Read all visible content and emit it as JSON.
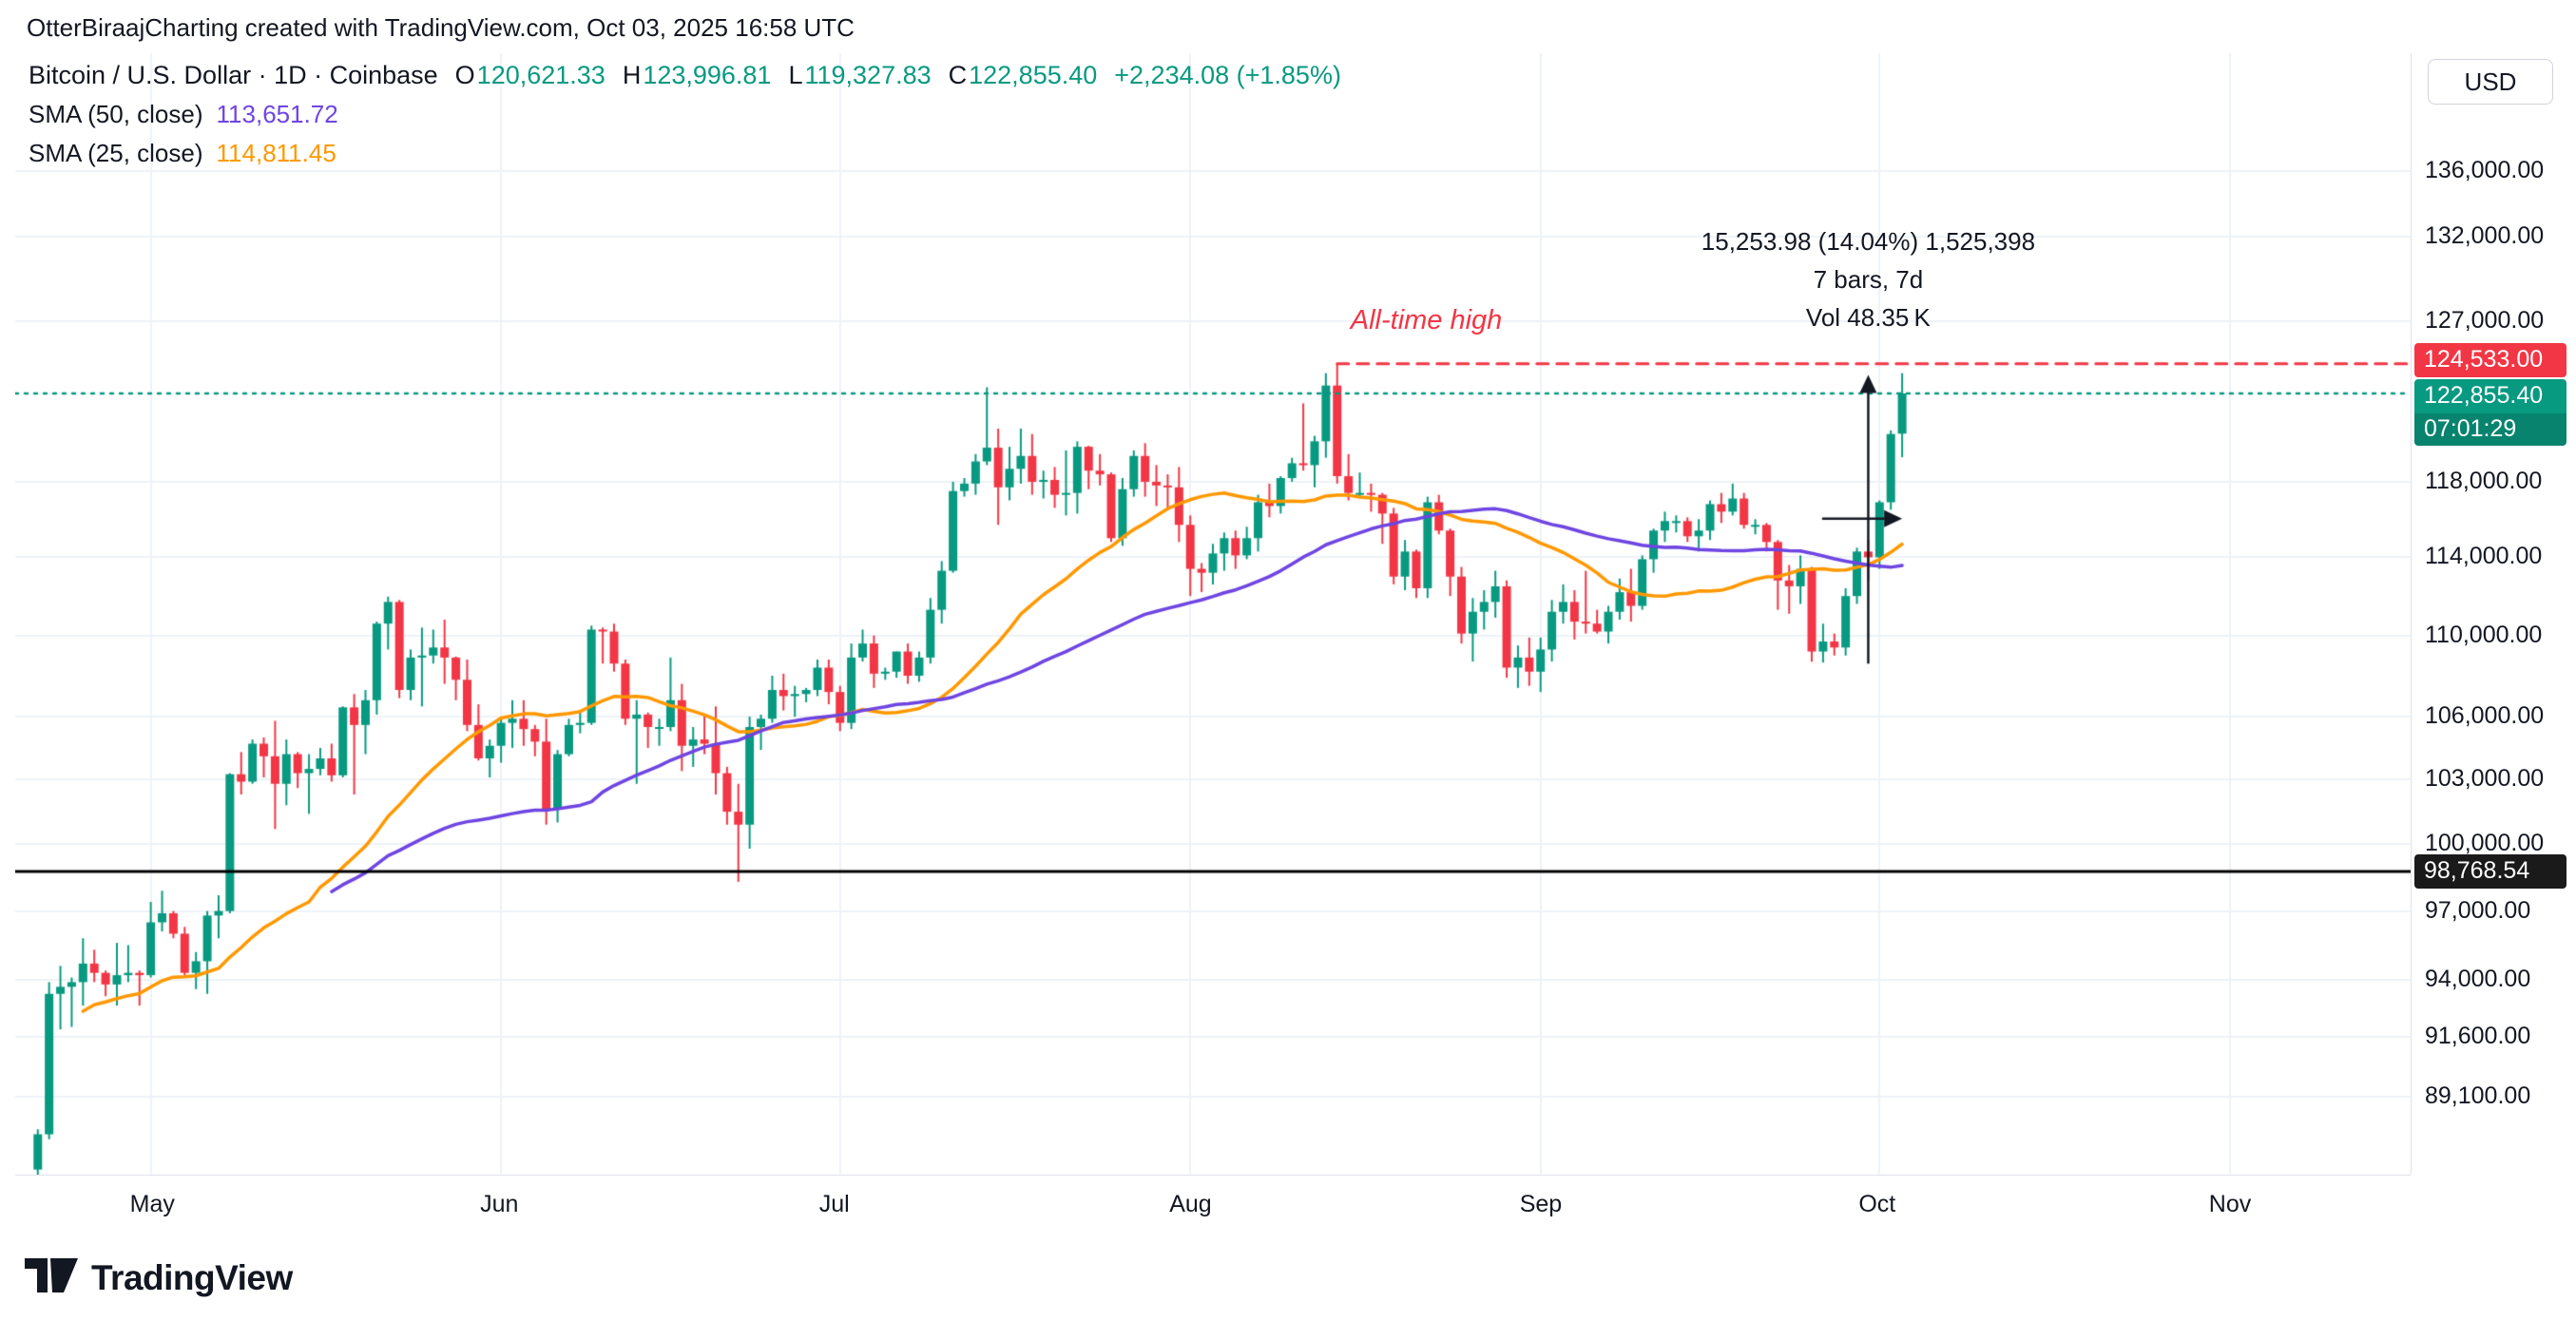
{
  "attribution": "OtterBiraajCharting created with TradingView.com, Oct 03, 2025 16:58 UTC",
  "header": {
    "title": "Bitcoin / U.S. Dollar · 1D · Coinbase",
    "o_label": "O",
    "o": "120,621.33",
    "h_label": "H",
    "h": "123,996.81",
    "l_label": "L",
    "l": "119,327.83",
    "c_label": "C",
    "c": "122,855.40",
    "change": "+2,234.08 (+1.85%)"
  },
  "indicators": [
    {
      "label": "SMA (50, close)",
      "period": 50,
      "value": "113,651.72",
      "color": "#6e45e2"
    },
    {
      "label": "SMA (25, close)",
      "period": 25,
      "value": "114,811.45",
      "color": "#ff9800"
    }
  ],
  "currency_button": "USD",
  "price_axis": {
    "labels": [
      {
        "text": "136,000.00",
        "price": 136000
      },
      {
        "text": "132,000.00",
        "price": 132000
      },
      {
        "text": "127,000.00",
        "price": 127000
      },
      {
        "text": "118,000.00",
        "price": 118000
      },
      {
        "text": "114,000.00",
        "price": 114000
      },
      {
        "text": "110,000.00",
        "price": 110000
      },
      {
        "text": "106,000.00",
        "price": 106000
      },
      {
        "text": "103,000.00",
        "price": 103000
      },
      {
        "text": "100,000.00",
        "price": 100000
      },
      {
        "text": "97,000.00",
        "price": 97000
      },
      {
        "text": "94,000.00",
        "price": 94000
      },
      {
        "text": "91,600.00",
        "price": 91600
      },
      {
        "text": "89,100.00",
        "price": 89100
      }
    ],
    "badges": {
      "ath": {
        "text": "124,533.00",
        "price": 124533,
        "color": "#f23645"
      },
      "last": {
        "text": "122,855.40",
        "price": 122855.4,
        "color": "#089981"
      },
      "countdown": {
        "text": "07:01:29",
        "color": "#07836e"
      },
      "level": {
        "text": "98,768.54",
        "price": 98768.54,
        "color": "#1a1a1a"
      }
    }
  },
  "time_axis": {
    "labels": [
      {
        "label": "May",
        "t": "05-01"
      },
      {
        "label": "Jun",
        "t": "06-01"
      },
      {
        "label": "Jul",
        "t": "07-01"
      },
      {
        "label": "Aug",
        "t": "08-01"
      },
      {
        "label": "Sep",
        "t": "09-01"
      },
      {
        "label": "Oct",
        "t": "10-01"
      },
      {
        "label": "Nov",
        "t": "11-01"
      }
    ]
  },
  "annotations": {
    "ath_label": "All-time high",
    "measure": {
      "line1": "15,253.98 (14.04%) 1,525,398",
      "line2": "7 bars, 7d",
      "line3": "Vol 48.35 K"
    }
  },
  "footer": {
    "brand": "TradingView"
  },
  "theme": {
    "background": "#ffffff",
    "grid": "#eef2f7",
    "up": "#089981",
    "down": "#f23645",
    "text": "#131722",
    "ath_line": "#f23645",
    "last_line": "#089981",
    "black_line": "#000000",
    "measure": "#131722"
  },
  "chart_data": {
    "type": "candlestick",
    "symbol": "Bitcoin / U.S. Dollar",
    "ticker": "BTCUSD",
    "exchange": "Coinbase",
    "interval": "1D",
    "title": "Bitcoin / U.S. Dollar · 1D · Coinbase",
    "scale": {
      "type": "log",
      "price_min": 86000,
      "price_max": 143500,
      "time_start": "04-19",
      "span_days": 212
    },
    "levels": {
      "ath": 124533.0,
      "ath_anchor": "08-14",
      "last": 122855.4,
      "black_level": 98768.54
    },
    "measure": {
      "start": "09-26",
      "end": "10-03",
      "mid": "09-30",
      "from_price": 108650,
      "to_price": 123900,
      "bars": 7,
      "days": 7,
      "volume": "48.35K"
    },
    "candles": [
      [
        "04-21",
        86200,
        87800,
        85800,
        87600
      ],
      [
        "04-22",
        87600,
        93900,
        87400,
        93400
      ],
      [
        "04-23",
        93400,
        94600,
        91900,
        93700
      ],
      [
        "04-24",
        93700,
        94100,
        92000,
        93900
      ],
      [
        "04-25",
        93900,
        95800,
        92900,
        94700
      ],
      [
        "04-26",
        94700,
        95300,
        93900,
        94300
      ],
      [
        "04-27",
        94300,
        94400,
        93300,
        93800
      ],
      [
        "04-28",
        93800,
        95600,
        92900,
        94200
      ],
      [
        "04-29",
        94200,
        95500,
        93900,
        94300
      ],
      [
        "04-30",
        94300,
        94400,
        92900,
        94200
      ],
      [
        "05-01",
        94200,
        97400,
        94100,
        96500
      ],
      [
        "05-02",
        96500,
        97900,
        96100,
        96900
      ],
      [
        "05-03",
        96900,
        97000,
        95800,
        96000
      ],
      [
        "05-04",
        96000,
        96300,
        94200,
        94300
      ],
      [
        "05-05",
        94300,
        95200,
        93600,
        94800
      ],
      [
        "05-06",
        94800,
        97000,
        93400,
        96800
      ],
      [
        "05-07",
        96800,
        97700,
        95800,
        97000
      ],
      [
        "05-08",
        97000,
        103300,
        96900,
        103250
      ],
      [
        "05-09",
        103250,
        104300,
        102300,
        102900
      ],
      [
        "05-10",
        102900,
        104900,
        102800,
        104700
      ],
      [
        "05-11",
        104700,
        105000,
        103100,
        104100
      ],
      [
        "05-12",
        104100,
        105800,
        100700,
        102800
      ],
      [
        "05-13",
        102800,
        104900,
        101800,
        104200
      ],
      [
        "05-14",
        104200,
        104300,
        102600,
        103300
      ],
      [
        "05-15",
        103300,
        104200,
        101400,
        103500
      ],
      [
        "05-16",
        103500,
        104500,
        103200,
        104000
      ],
      [
        "05-17",
        104000,
        104700,
        102900,
        103200
      ],
      [
        "05-18",
        103200,
        106500,
        103100,
        106450
      ],
      [
        "05-19",
        106450,
        107100,
        102300,
        105600
      ],
      [
        "05-20",
        105600,
        107300,
        104200,
        106800
      ],
      [
        "05-21",
        106800,
        110700,
        106100,
        110600
      ],
      [
        "05-22",
        110600,
        111970,
        109300,
        111700
      ],
      [
        "05-23",
        111700,
        111800,
        106900,
        107300
      ],
      [
        "05-24",
        107300,
        109300,
        106800,
        108900
      ],
      [
        "05-25",
        108900,
        110400,
        106500,
        109000
      ],
      [
        "05-26",
        109000,
        110300,
        108600,
        109400
      ],
      [
        "05-27",
        109400,
        110800,
        107600,
        108900
      ],
      [
        "05-28",
        108900,
        108950,
        106800,
        107800
      ],
      [
        "05-29",
        107800,
        108800,
        105300,
        105600
      ],
      [
        "05-30",
        105600,
        106600,
        103900,
        104000
      ],
      [
        "05-31",
        104000,
        104900,
        103100,
        104600
      ],
      [
        "06-01",
        104600,
        105900,
        103800,
        105700
      ],
      [
        "06-02",
        105700,
        106800,
        104500,
        105900
      ],
      [
        "06-03",
        105900,
        106800,
        104600,
        105400
      ],
      [
        "06-04",
        105400,
        105600,
        104100,
        104800
      ],
      [
        "06-05",
        104800,
        105900,
        100900,
        101600
      ],
      [
        "06-06",
        101600,
        104400,
        101000,
        104200
      ],
      [
        "06-07",
        104200,
        105900,
        104100,
        105600
      ],
      [
        "06-08",
        105600,
        106200,
        105200,
        105700
      ],
      [
        "06-09",
        105700,
        110500,
        105600,
        110300
      ],
      [
        "06-10",
        110300,
        110400,
        108600,
        110200
      ],
      [
        "06-11",
        110200,
        110600,
        108200,
        108600
      ],
      [
        "06-12",
        108600,
        108800,
        105600,
        105900
      ],
      [
        "06-13",
        105900,
        106800,
        102800,
        106100
      ],
      [
        "06-14",
        106100,
        106200,
        104500,
        105500
      ],
      [
        "06-15",
        105500,
        105900,
        104600,
        105500
      ],
      [
        "06-16",
        105500,
        108900,
        105300,
        106800
      ],
      [
        "06-17",
        106800,
        107600,
        103400,
        104600
      ],
      [
        "06-18",
        104600,
        105500,
        103600,
        104900
      ],
      [
        "06-19",
        104900,
        106100,
        104200,
        104700
      ],
      [
        "06-20",
        104700,
        106500,
        102300,
        103300
      ],
      [
        "06-21",
        103300,
        103600,
        100900,
        101500
      ],
      [
        "06-22",
        101500,
        102800,
        98300,
        100900
      ],
      [
        "06-23",
        100900,
        106000,
        99800,
        105500
      ],
      [
        "06-24",
        105500,
        106100,
        104400,
        105900
      ],
      [
        "06-25",
        105900,
        108000,
        105700,
        107300
      ],
      [
        "06-26",
        107300,
        108100,
        106300,
        107000
      ],
      [
        "06-27",
        107000,
        107500,
        106000,
        107100
      ],
      [
        "06-28",
        107100,
        107400,
        106700,
        107300
      ],
      [
        "06-29",
        107300,
        108800,
        107000,
        108400
      ],
      [
        "06-30",
        108400,
        108800,
        106600,
        107200
      ],
      [
        "07-01",
        107200,
        107500,
        105300,
        105700
      ],
      [
        "07-02",
        105700,
        109600,
        105400,
        108900
      ],
      [
        "07-03",
        108900,
        110300,
        108700,
        109600
      ],
      [
        "07-04",
        109600,
        110000,
        107400,
        108100
      ],
      [
        "07-05",
        108100,
        108400,
        107800,
        108200
      ],
      [
        "07-06",
        108200,
        109200,
        107900,
        109200
      ],
      [
        "07-07",
        109200,
        109600,
        107600,
        108000
      ],
      [
        "07-08",
        108000,
        109200,
        107700,
        108900
      ],
      [
        "07-09",
        108900,
        111900,
        108600,
        111300
      ],
      [
        "07-10",
        111300,
        113800,
        110600,
        113300
      ],
      [
        "07-11",
        113300,
        118000,
        113200,
        117500
      ],
      [
        "07-12",
        117500,
        118200,
        117200,
        117900
      ],
      [
        "07-13",
        117900,
        119500,
        117300,
        119100
      ],
      [
        "07-14",
        119100,
        123200,
        118900,
        119850
      ],
      [
        "07-15",
        119850,
        120900,
        115700,
        117700
      ],
      [
        "07-16",
        117700,
        119900,
        117000,
        118700
      ],
      [
        "07-17",
        118700,
        120900,
        117900,
        119400
      ],
      [
        "07-18",
        119400,
        120600,
        117300,
        118000
      ],
      [
        "07-19",
        118000,
        118600,
        117100,
        118100
      ],
      [
        "07-20",
        118100,
        118800,
        116600,
        117300
      ],
      [
        "07-21",
        117300,
        119700,
        116200,
        117400
      ],
      [
        "07-22",
        117400,
        120200,
        116300,
        119900
      ],
      [
        "07-23",
        119900,
        119950,
        117600,
        118600
      ],
      [
        "07-24",
        118600,
        119500,
        117800,
        118400
      ],
      [
        "07-25",
        118400,
        118500,
        114800,
        115000
      ],
      [
        "07-26",
        115000,
        118200,
        114600,
        117600
      ],
      [
        "07-27",
        117600,
        119700,
        117200,
        119400
      ],
      [
        "07-28",
        119400,
        120100,
        117200,
        118000
      ],
      [
        "07-29",
        118000,
        118900,
        116700,
        117800
      ],
      [
        "07-30",
        117800,
        118400,
        116500,
        117700
      ],
      [
        "07-31",
        117700,
        118800,
        114800,
        115700
      ],
      [
        "08-01",
        115700,
        116200,
        112000,
        113400
      ],
      [
        "08-02",
        113400,
        113700,
        112200,
        113200
      ],
      [
        "08-03",
        113200,
        114700,
        112600,
        114200
      ],
      [
        "08-04",
        114200,
        115300,
        113300,
        115000
      ],
      [
        "08-05",
        115000,
        115400,
        113400,
        114100
      ],
      [
        "08-06",
        114100,
        115600,
        113900,
        115000
      ],
      [
        "08-07",
        115000,
        117300,
        114300,
        116900
      ],
      [
        "08-08",
        116900,
        117900,
        116100,
        116700
      ],
      [
        "08-09",
        116700,
        118300,
        116300,
        118200
      ],
      [
        "08-10",
        118200,
        119300,
        118000,
        119000
      ],
      [
        "08-11",
        119000,
        122300,
        118600,
        118900
      ],
      [
        "08-12",
        118900,
        120500,
        117700,
        120200
      ],
      [
        "08-13",
        120200,
        124000,
        119300,
        123300
      ],
      [
        "08-14",
        123300,
        124533,
        117900,
        118300
      ],
      [
        "08-15",
        118300,
        119500,
        117000,
        117400
      ],
      [
        "08-16",
        117400,
        118500,
        117100,
        117400
      ],
      [
        "08-17",
        117400,
        117900,
        116400,
        117300
      ],
      [
        "08-18",
        117300,
        117400,
        114700,
        116300
      ],
      [
        "08-19",
        116300,
        116600,
        112600,
        113000
      ],
      [
        "08-20",
        113000,
        114900,
        112300,
        114300
      ],
      [
        "08-21",
        114300,
        114400,
        111900,
        112400
      ],
      [
        "08-22",
        112400,
        117200,
        111900,
        116900
      ],
      [
        "08-23",
        116900,
        117300,
        115200,
        115400
      ],
      [
        "08-24",
        115400,
        115500,
        112000,
        113000
      ],
      [
        "08-25",
        113000,
        113500,
        109600,
        110100
      ],
      [
        "08-26",
        110100,
        111900,
        108700,
        111200
      ],
      [
        "08-27",
        111200,
        112300,
        110300,
        111700
      ],
      [
        "08-28",
        111700,
        113300,
        110900,
        112500
      ],
      [
        "08-29",
        112500,
        112800,
        107900,
        108400
      ],
      [
        "08-30",
        108400,
        109500,
        107400,
        108900
      ],
      [
        "08-31",
        108900,
        109900,
        107500,
        108200
      ],
      [
        "09-01",
        108200,
        109900,
        107200,
        109300
      ],
      [
        "09-02",
        109300,
        111800,
        108700,
        111200
      ],
      [
        "09-03",
        111200,
        112600,
        110600,
        111700
      ],
      [
        "09-04",
        111700,
        112300,
        109800,
        110700
      ],
      [
        "09-05",
        110700,
        113300,
        110100,
        110600
      ],
      [
        "09-06",
        110600,
        111300,
        110100,
        110200
      ],
      [
        "09-07",
        110200,
        111500,
        109600,
        111200
      ],
      [
        "09-08",
        111200,
        112900,
        110800,
        112200
      ],
      [
        "09-09",
        112200,
        113400,
        110700,
        111500
      ],
      [
        "09-10",
        111500,
        114100,
        111300,
        113900
      ],
      [
        "09-11",
        113900,
        115500,
        113200,
        115400
      ],
      [
        "09-12",
        115400,
        116400,
        114800,
        115900
      ],
      [
        "09-13",
        115900,
        116200,
        115300,
        115900
      ],
      [
        "09-14",
        115900,
        116100,
        114800,
        115100
      ],
      [
        "09-15",
        115100,
        116000,
        114300,
        115400
      ],
      [
        "09-16",
        115400,
        117000,
        114900,
        116800
      ],
      [
        "09-17",
        116800,
        117400,
        115800,
        116400
      ],
      [
        "09-18",
        116400,
        117900,
        116200,
        117100
      ],
      [
        "09-19",
        117100,
        117400,
        115500,
        115700
      ],
      [
        "09-20",
        115700,
        116000,
        115200,
        115700
      ],
      [
        "09-21",
        115700,
        115800,
        114300,
        114800
      ],
      [
        "09-22",
        114800,
        114900,
        111300,
        112800
      ],
      [
        "09-23",
        112800,
        113600,
        111100,
        112500
      ],
      [
        "09-24",
        112500,
        114100,
        111600,
        113400
      ],
      [
        "09-25",
        113400,
        113500,
        108700,
        109200
      ],
      [
        "09-26",
        109200,
        110600,
        108650,
        109700
      ],
      [
        "09-27",
        109700,
        110100,
        109000,
        109400
      ],
      [
        "09-28",
        109400,
        112400,
        109000,
        112000
      ],
      [
        "09-29",
        112000,
        114500,
        111600,
        114300
      ],
      [
        "09-30",
        114300,
        114900,
        112800,
        114000
      ],
      [
        "10-01",
        114000,
        117000,
        113400,
        116900
      ],
      [
        "10-02",
        116900,
        120800,
        116500,
        120600
      ],
      [
        "10-03",
        120621.33,
        123996.81,
        119327.83,
        122855.4
      ]
    ]
  }
}
